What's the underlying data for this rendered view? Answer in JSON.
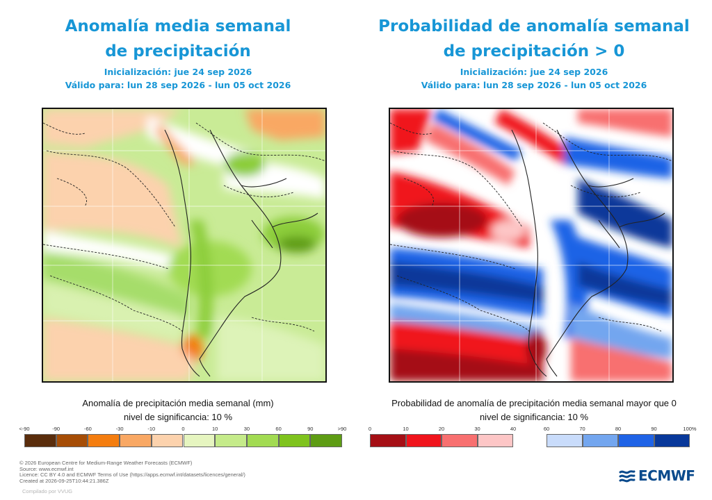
{
  "left_panel": {
    "title_line1": "Anomalía media semanal",
    "title_line2": "de precipitación",
    "init": "Inicialización: jue 24 sep 2026",
    "valid": "Válido para: lun 28 sep 2026 - lun 05 oct 2026",
    "legend_title": "Anomalía de precipitación media semanal (mm)",
    "legend_sig": "nivel de significancia: 10 %",
    "colorbar": {
      "ticks": [
        "<-90",
        "-90",
        "-60",
        "-30",
        "-10",
        "0",
        "10",
        "30",
        "60",
        "90",
        ">90"
      ],
      "colors": [
        "#5a2d0c",
        "#a64d06",
        "#f47d0f",
        "#f9a864",
        "#fcd2ad",
        "#e6f5c0",
        "#c5eb8a",
        "#a2db52",
        "#7fc31e",
        "#5e9c14"
      ]
    }
  },
  "right_panel": {
    "title_line1": "Probabilidad de anomalía semanal",
    "title_line2": "de precipitación > 0",
    "init": "Inicialización: jue 24 sep 2026",
    "valid": "Válido para: lun 28 sep 2026 - lun 05 oct 2026",
    "legend_title": "Probabilidad de anomalía de precipitación media semanal mayor que 0",
    "legend_sig": "nivel de significancia: 10 %",
    "colorbar": {
      "ticks": [
        "0",
        "10",
        "20",
        "30",
        "40",
        "60",
        "70",
        "80",
        "90",
        "100%"
      ],
      "colors_red": [
        "#a50f15",
        "#f0141c",
        "#f87070",
        "#fdc6c6"
      ],
      "colors_blue": [
        "#c9dcfb",
        "#73a6ef",
        "#1f63e6",
        "#08389a"
      ]
    }
  },
  "footer": {
    "line1": "© 2026 European Centre for Medium-Range Weather Forecasts (ECMWF)",
    "line2": "Source: www.ecmwf.int",
    "line3": "Licence: CC BY 4.0 and ECMWF Terms of Use (https://apps.ecmwf.int/datasets/licences/general/)",
    "line4": "Created at 2026-09-25T10:44:21.386Z",
    "compiled": "Compilado por VVUG"
  },
  "logo": {
    "text": "ECMWF"
  }
}
